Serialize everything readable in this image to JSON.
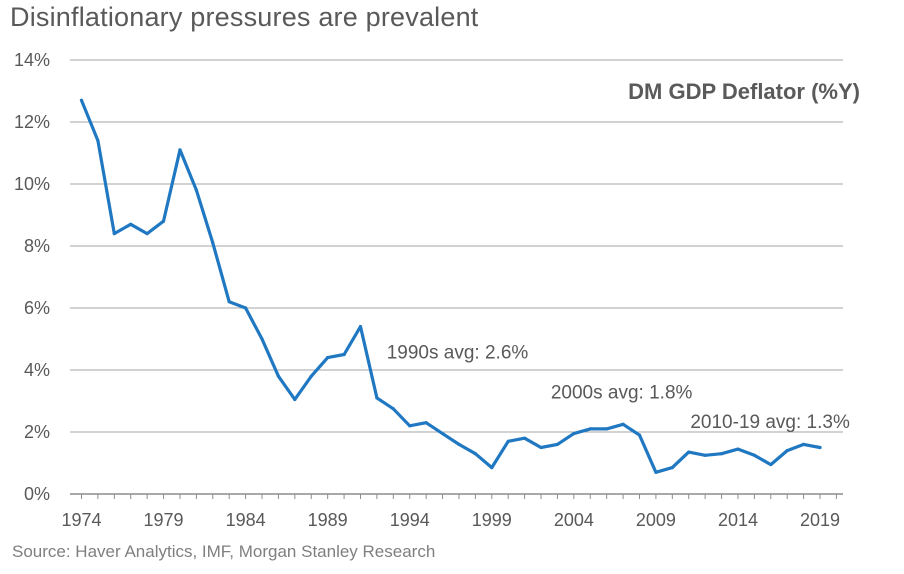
{
  "page": {
    "title": "Disinflationary pressures are prevalent",
    "source": "Source: Haver Analytics, IMF, Morgan Stanley Research"
  },
  "chart_data": {
    "type": "line",
    "title": "Disinflationary pressures are prevalent",
    "series_label": "DM GDP Deflator (%Y)",
    "xlabel": "",
    "ylabel": "",
    "xlim": [
      1973.3,
      2020.4
    ],
    "ylim": [
      0,
      14
    ],
    "x_ticks": [
      1974,
      1979,
      1984,
      1989,
      1994,
      1999,
      2004,
      2009,
      2014,
      2019
    ],
    "x_tick_labels": [
      "1974",
      "1979",
      "1984",
      "1989",
      "1994",
      "1999",
      "2004",
      "2009",
      "2014",
      "2019"
    ],
    "y_ticks": [
      0,
      2,
      4,
      6,
      8,
      10,
      12,
      14
    ],
    "y_tick_labels": [
      "0%",
      "2%",
      "4%",
      "6%",
      "8%",
      "10%",
      "12%",
      "14%"
    ],
    "grid": true,
    "color": "#1f78c1",
    "series": [
      {
        "name": "DM GDP Deflator (%Y)",
        "x": [
          1974,
          1975,
          1976,
          1977,
          1978,
          1979,
          1980,
          1981,
          1982,
          1983,
          1984,
          1985,
          1986,
          1987,
          1988,
          1989,
          1990,
          1991,
          1992,
          1993,
          1994,
          1995,
          1996,
          1997,
          1998,
          1999,
          2000,
          2001,
          2002,
          2003,
          2004,
          2005,
          2006,
          2007,
          2008,
          2009,
          2010,
          2011,
          2012,
          2013,
          2014,
          2015,
          2016,
          2017,
          2018,
          2019
        ],
        "values": [
          12.7,
          11.4,
          8.4,
          8.7,
          8.4,
          8.8,
          11.1,
          9.8,
          8.1,
          6.2,
          6.0,
          5.0,
          3.8,
          3.05,
          3.8,
          4.4,
          4.5,
          5.4,
          3.1,
          2.75,
          2.2,
          2.3,
          1.95,
          1.6,
          1.3,
          0.85,
          1.7,
          1.8,
          1.5,
          1.6,
          1.95,
          2.1,
          2.1,
          2.25,
          1.9,
          0.7,
          0.85,
          1.35,
          1.25,
          1.3,
          1.45,
          1.25,
          0.95,
          1.4,
          1.6,
          1.5
        ]
      }
    ],
    "annotations": [
      {
        "text": "1990s avg: 2.6%",
        "x": 1992.6,
        "y": 4.6
      },
      {
        "text": "2000s avg: 1.8%",
        "x": 2002.6,
        "y": 3.3
      },
      {
        "text": "2010-19 avg: 1.3%",
        "x": 2011.1,
        "y": 2.35
      }
    ]
  }
}
